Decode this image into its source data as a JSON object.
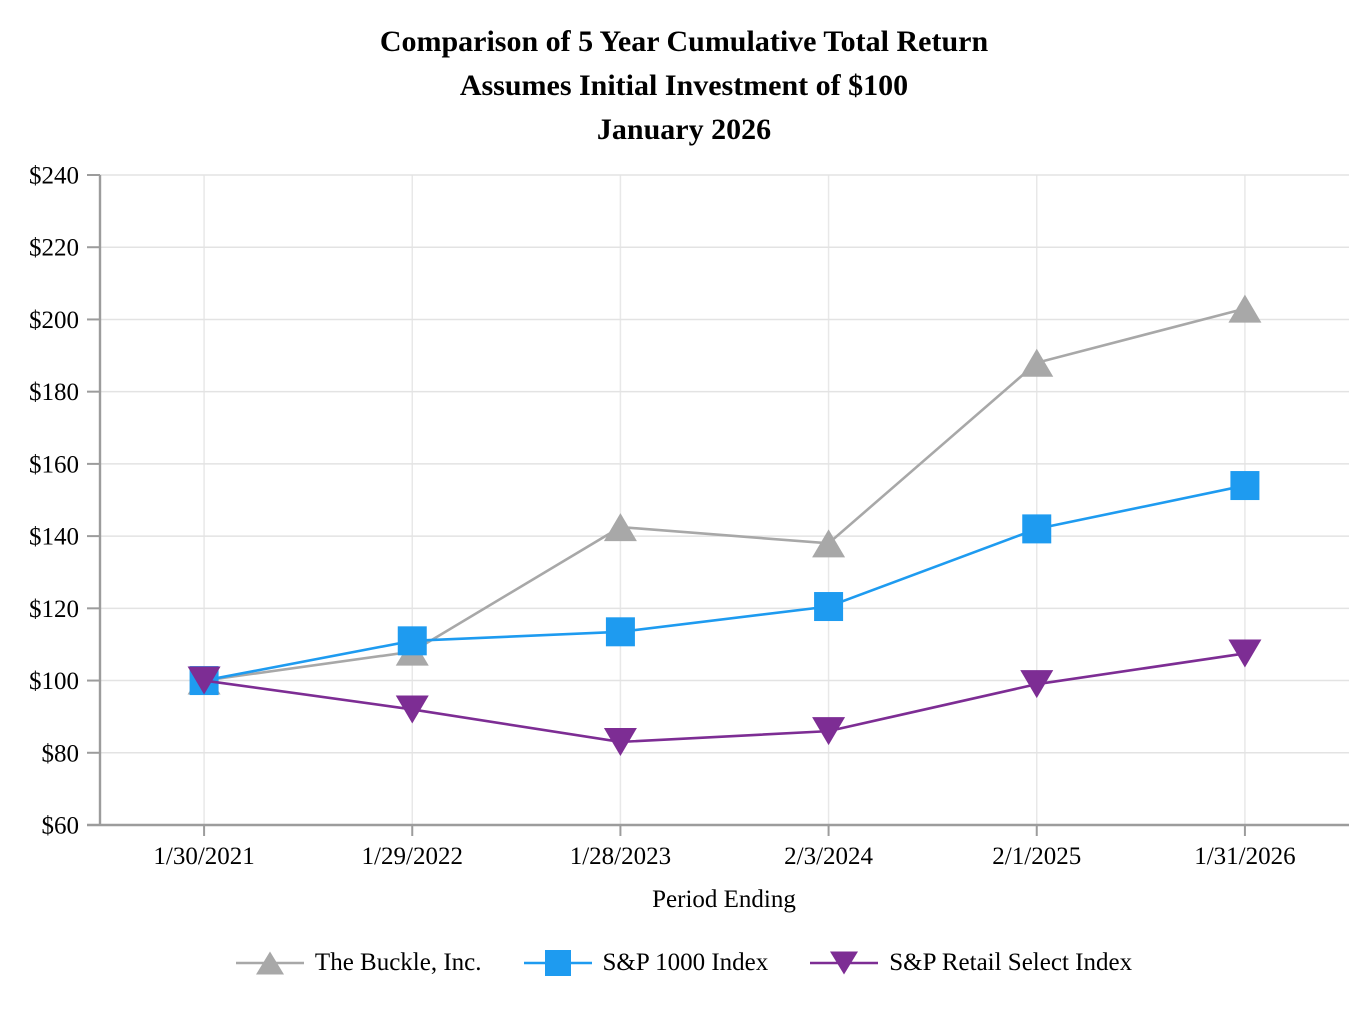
{
  "title": {
    "line1": "Comparison of 5 Year Cumulative Total Return",
    "line2": "Assumes Initial Investment of $100",
    "line3": "January 2026"
  },
  "chart_data": {
    "type": "line",
    "categories": [
      "1/30/2021",
      "1/29/2022",
      "1/28/2023",
      "2/3/2024",
      "2/1/2025",
      "1/31/2026"
    ],
    "series": [
      {
        "name": "The Buckle, Inc.",
        "marker": "triangle-up",
        "color": "#A8A8A8",
        "values": [
          100,
          108,
          142.5,
          138,
          188,
          203
        ]
      },
      {
        "name": "S&P 1000 Index",
        "marker": "square",
        "color": "#1E9BF0",
        "values": [
          100,
          111,
          113.5,
          120.5,
          142,
          154
        ]
      },
      {
        "name": "S&P Retail Select Index",
        "marker": "triangle-down",
        "color": "#7D2D94",
        "values": [
          100,
          92,
          83,
          86,
          99,
          107.5
        ]
      }
    ],
    "xlabel": "Period Ending",
    "ylabel": "",
    "ylim": [
      60,
      240
    ],
    "ytick_step": 20,
    "ytick_prefix": "$",
    "grid": true,
    "legend_position": "bottom"
  },
  "style": {
    "grid_color": "#E3E3E3",
    "vgrid_color": "#E8E8E8",
    "axis_color": "#9C9C9C",
    "text_color": "#000000"
  }
}
